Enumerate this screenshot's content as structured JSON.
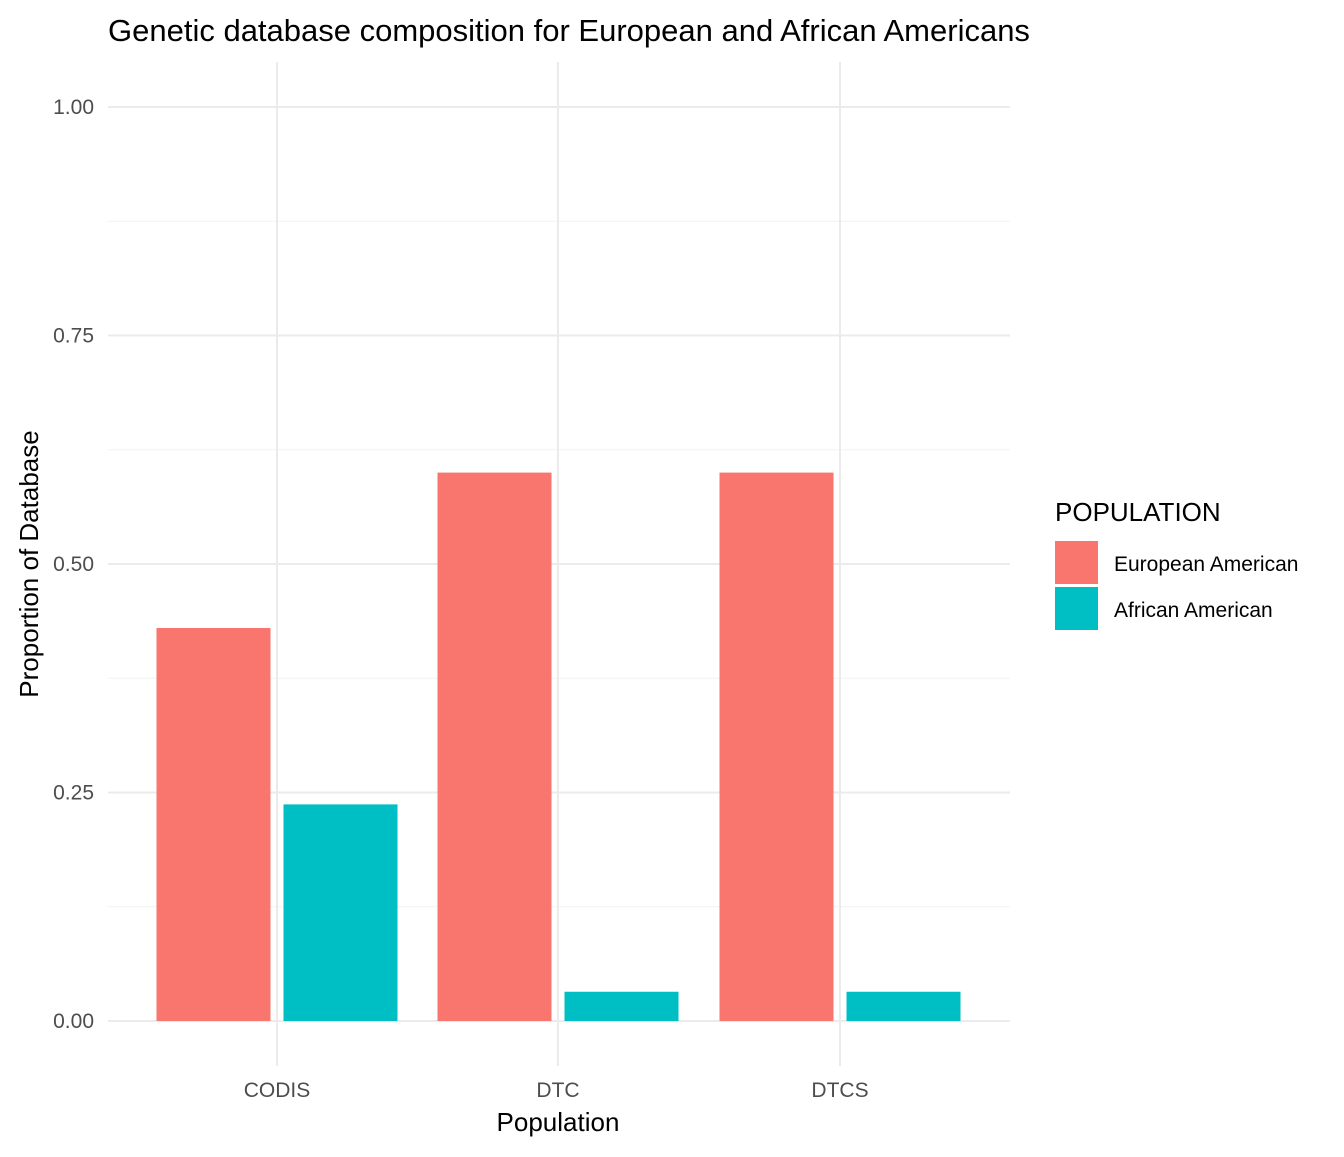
{
  "chart_data": {
    "type": "bar",
    "title": "Genetic database composition for European and African Americans",
    "xlabel": "Population",
    "ylabel": "Proportion of Database",
    "categories": [
      "CODIS",
      "DTC",
      "DTCS"
    ],
    "series": [
      {
        "name": "European American",
        "color": "#F8766D",
        "values": [
          0.43,
          0.6,
          0.6
        ]
      },
      {
        "name": "African American",
        "color": "#00BFC4",
        "values": [
          0.237,
          0.032,
          0.032
        ]
      }
    ],
    "ylim": [
      0,
      1
    ],
    "yticks": [
      0,
      0.25,
      0.5,
      0.75,
      1.0
    ],
    "ytick_labels": [
      "0.00",
      "0.25",
      "0.50",
      "0.75",
      "1.00"
    ],
    "grid": true,
    "legend": {
      "title": "POPULATION",
      "position": "right"
    }
  }
}
